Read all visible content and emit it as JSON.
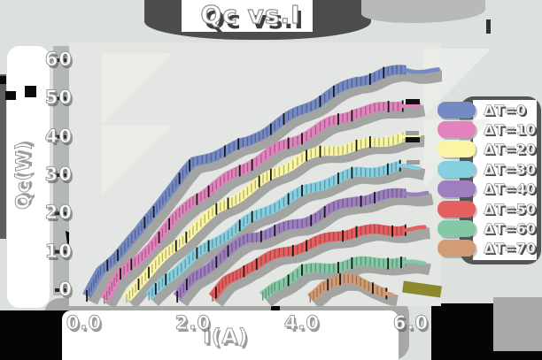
{
  "title": "Qc vs.I",
  "chart_data": {
    "type": "line",
    "title": "Qc vs.I",
    "xlabel": "I(A)",
    "ylabel": "Qc(W)",
    "x_ticks": [
      "0.0",
      "2.0",
      "4.0",
      "6.0"
    ],
    "x_tick_values": [
      0,
      2,
      4,
      6
    ],
    "y_ticks": [
      "0",
      "10",
      "20",
      "30",
      "40",
      "50",
      "60"
    ],
    "y_tick_values": [
      0,
      10,
      20,
      30,
      40,
      50,
      60
    ],
    "xlim": [
      -0.2,
      6.7
    ],
    "ylim": [
      -3,
      62
    ],
    "grid": false,
    "legend_position": "right",
    "style": "hand-drawn thick bands with hatch ticks and gray offset shadows",
    "series": [
      {
        "name": "ΔT=0",
        "color": "#7589c4",
        "x_intercept": 0.05,
        "points": [
          [
            0.05,
            -2
          ],
          [
            0.3,
            5
          ],
          [
            1,
            15
          ],
          [
            1.5,
            25
          ],
          [
            2,
            33
          ],
          [
            2.5,
            36
          ],
          [
            3,
            38.5
          ],
          [
            3.5,
            43
          ],
          [
            4,
            47
          ],
          [
            4.5,
            51
          ],
          [
            5,
            54.5
          ],
          [
            5.5,
            56.5
          ],
          [
            5.9,
            57.5
          ]
        ],
        "tail": [
          [
            5.9,
            57.5
          ],
          [
            6.5,
            57.2
          ]
        ]
      },
      {
        "name": "ΔT=10",
        "color": "#e283bd",
        "x_intercept": 0.37,
        "points": [
          [
            0.37,
            -2
          ],
          [
            0.6,
            3
          ],
          [
            1,
            8
          ],
          [
            1.5,
            16
          ],
          [
            2,
            23.5
          ],
          [
            2.5,
            28
          ],
          [
            3,
            32.5
          ],
          [
            3.5,
            36.5
          ],
          [
            4,
            40
          ],
          [
            4.5,
            43.5
          ],
          [
            5,
            46.5
          ],
          [
            5.5,
            47.5
          ],
          [
            5.85,
            48.5
          ]
        ],
        "tail": [
          [
            5.85,
            48.5
          ],
          [
            6.15,
            48.3
          ]
        ]
      },
      {
        "name": "ΔT=20",
        "color": "#f9f5a2",
        "x_intercept": 0.78,
        "points": [
          [
            0.78,
            -2
          ],
          [
            1,
            2
          ],
          [
            1.5,
            9
          ],
          [
            2,
            16
          ],
          [
            2.5,
            21.5
          ],
          [
            3,
            26
          ],
          [
            3.5,
            30.5
          ],
          [
            4,
            34.5
          ],
          [
            4.5,
            36.5
          ],
          [
            5,
            37.5
          ],
          [
            5.5,
            39
          ],
          [
            5.85,
            40
          ]
        ],
        "tail": [
          [
            5.85,
            40
          ],
          [
            6.15,
            40
          ]
        ]
      },
      {
        "name": "ΔT=30",
        "color": "#85cfe0",
        "x_intercept": 1.19,
        "points": [
          [
            1.19,
            -2
          ],
          [
            1.5,
            3
          ],
          [
            2,
            8.5
          ],
          [
            2.5,
            13.5
          ],
          [
            3,
            18
          ],
          [
            3.5,
            22
          ],
          [
            4,
            25.5
          ],
          [
            4.5,
            28.5
          ],
          [
            5,
            30.5
          ],
          [
            5.5,
            31.5
          ],
          [
            5.8,
            32
          ]
        ],
        "tail": [
          [
            5.8,
            32
          ],
          [
            6.15,
            32
          ]
        ]
      },
      {
        "name": "ΔT=40",
        "color": "#9d7fc0",
        "x_intercept": 1.71,
        "points": [
          [
            1.71,
            -2
          ],
          [
            2,
            3
          ],
          [
            2.5,
            8.5
          ],
          [
            3,
            13.5
          ],
          [
            3.5,
            15.5
          ],
          [
            4,
            17.5
          ],
          [
            4.5,
            21
          ],
          [
            5,
            23.5
          ],
          [
            5.5,
            24.5
          ],
          [
            5.9,
            25.5
          ]
        ],
        "tail": [
          [
            5.9,
            25.5
          ],
          [
            6.3,
            25.3
          ]
        ]
      },
      {
        "name": "ΔT=50",
        "color": "#e46060",
        "x_intercept": 2.36,
        "points": [
          [
            2.36,
            -2
          ],
          [
            2.6,
            2
          ],
          [
            3,
            6
          ],
          [
            3.5,
            9
          ],
          [
            4,
            11.5
          ],
          [
            4.5,
            13.5
          ],
          [
            5,
            15.5
          ],
          [
            5.5,
            15.5
          ],
          [
            5.9,
            16
          ]
        ],
        "tail": [
          [
            5.9,
            16
          ],
          [
            6.25,
            16
          ]
        ]
      },
      {
        "name": "ΔT=60",
        "color": "#84c8a5",
        "x_intercept": 3.28,
        "points": [
          [
            3.28,
            -2
          ],
          [
            3.5,
            1
          ],
          [
            4,
            5
          ],
          [
            4.5,
            6
          ],
          [
            5,
            7
          ],
          [
            5.5,
            7.5
          ],
          [
            5.9,
            7
          ]
        ],
        "tail": [
          [
            5.9,
            7
          ],
          [
            6.25,
            7
          ]
        ]
      },
      {
        "name": "ΔT=70",
        "color": "#d29c76",
        "x_intercept": 4.15,
        "points": [
          [
            4.15,
            -2
          ],
          [
            4.4,
            1.5
          ],
          [
            4.7,
            2.5
          ],
          [
            5,
            2.5
          ],
          [
            5.3,
            1
          ],
          [
            5.55,
            -1
          ]
        ],
        "tail": [
          [
            5.55,
            -1
          ],
          [
            5.65,
            -1.5
          ]
        ]
      }
    ],
    "colors": {
      "background": "#dde1de",
      "plot_background": "#e3e6e2",
      "shadow_gray": "#a2a5a2",
      "olive_end_bar": "#8e892c",
      "text": "#ffffff"
    }
  },
  "legend": {
    "items": [
      {
        "label": "ΔT=0",
        "color": "#7589c4"
      },
      {
        "label": "ΔT=10",
        "color": "#e283bd"
      },
      {
        "label": "ΔT=20",
        "color": "#f9f5a2"
      },
      {
        "label": "ΔT=30",
        "color": "#85cfe0"
      },
      {
        "label": "ΔT=40",
        "color": "#9d7fc0"
      },
      {
        "label": "ΔT=50",
        "color": "#e46060"
      },
      {
        "label": "ΔT=60",
        "color": "#84c8a5"
      },
      {
        "label": "ΔT=70",
        "color": "#d29c76"
      }
    ]
  }
}
